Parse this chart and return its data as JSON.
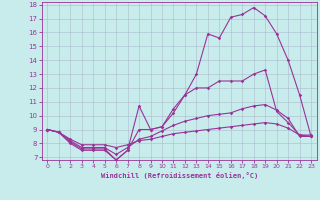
{
  "xlabel": "Windchill (Refroidissement éolien,°C)",
  "xlim": [
    -0.5,
    23.5
  ],
  "ylim": [
    6.8,
    18.2
  ],
  "yticks": [
    7,
    8,
    9,
    10,
    11,
    12,
    13,
    14,
    15,
    16,
    17,
    18
  ],
  "xticks": [
    0,
    1,
    2,
    3,
    4,
    5,
    6,
    7,
    8,
    9,
    10,
    11,
    12,
    13,
    14,
    15,
    16,
    17,
    18,
    19,
    20,
    21,
    22,
    23
  ],
  "bg_color": "#c8ecec",
  "line_color": "#993399",
  "grid_color": "#aabbcc",
  "line1": [
    9.0,
    8.8,
    8.0,
    7.5,
    7.5,
    7.5,
    6.8,
    7.5,
    9.0,
    9.0,
    9.2,
    10.5,
    11.5,
    13.0,
    15.9,
    15.6,
    17.1,
    17.3,
    17.8,
    17.2,
    15.9,
    14.0,
    11.5,
    8.5
  ],
  "line2": [
    9.0,
    8.8,
    8.1,
    7.6,
    7.6,
    7.6,
    6.8,
    7.5,
    10.7,
    9.0,
    9.2,
    10.2,
    11.5,
    12.0,
    12.0,
    12.5,
    12.5,
    12.5,
    13.0,
    13.3,
    10.3,
    9.5,
    8.6,
    8.5
  ],
  "line3": [
    9.0,
    8.8,
    8.2,
    7.7,
    7.7,
    7.7,
    7.2,
    7.7,
    8.3,
    8.5,
    8.9,
    9.3,
    9.6,
    9.8,
    10.0,
    10.1,
    10.2,
    10.5,
    10.7,
    10.8,
    10.4,
    9.8,
    8.5,
    8.5
  ],
  "line4": [
    9.0,
    8.8,
    8.3,
    7.9,
    7.9,
    7.9,
    7.7,
    7.9,
    8.2,
    8.3,
    8.5,
    8.7,
    8.8,
    8.9,
    9.0,
    9.1,
    9.2,
    9.3,
    9.4,
    9.5,
    9.4,
    9.1,
    8.6,
    8.6
  ]
}
